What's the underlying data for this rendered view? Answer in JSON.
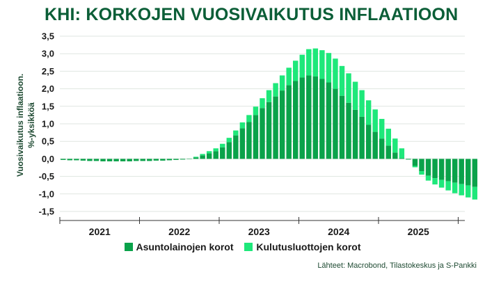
{
  "title": "KHI: KORKOJEN VUOSIVAIKUTUS INFLAATIOON",
  "source": "Lähteet: Macrobond, Tilastokeskus ja S-Pankki",
  "colors": {
    "mortgage": "#0aa24a",
    "consumer": "#1ee87a",
    "title": "#0b5e37"
  },
  "chart_data": {
    "type": "bar",
    "stacked": true,
    "title": "KHI: KORKOJEN VUOSIVAIKUTUS INFLAATIOON",
    "ylabel": [
      "Vuosivaikutus inflaatioon.",
      "%-yksikköä"
    ],
    "xlabel": "",
    "ylim": [
      -1.5,
      3.5
    ],
    "yticks": [
      -1.5,
      -1.0,
      -0.5,
      0.0,
      0.5,
      1.0,
      1.5,
      2.0,
      2.5,
      3.0,
      3.5
    ],
    "ytick_labels": [
      "-1,5",
      "-1,0",
      "-0,5",
      "0,0",
      "0,5",
      "1,0",
      "1,5",
      "2,0",
      "2,5",
      "3,0",
      "3,5"
    ],
    "year_labels": [
      "2021",
      "2022",
      "2023",
      "2024",
      "2025"
    ],
    "grid": true,
    "legend_position": "bottom",
    "x_start": "2021-01",
    "x_end": "2025-06",
    "series": [
      {
        "name": "Asuntolainojen korot",
        "values": [
          -0.03,
          -0.04,
          -0.04,
          -0.05,
          -0.06,
          -0.06,
          -0.07,
          -0.07,
          -0.07,
          -0.07,
          -0.07,
          -0.06,
          -0.06,
          -0.06,
          -0.05,
          -0.05,
          -0.04,
          -0.03,
          -0.02,
          0.0,
          0.04,
          0.1,
          0.16,
          0.22,
          0.33,
          0.48,
          0.67,
          0.87,
          1.05,
          1.25,
          1.45,
          1.62,
          1.78,
          1.95,
          2.1,
          2.22,
          2.32,
          2.38,
          2.35,
          2.28,
          2.18,
          2.0,
          1.8,
          1.6,
          1.4,
          1.2,
          0.97,
          0.77,
          0.58,
          0.38,
          0.18,
          0.02,
          -0.02,
          -0.2,
          -0.35,
          -0.48,
          -0.55,
          -0.6,
          -0.64,
          -0.68,
          -0.72,
          -0.76,
          -0.8
        ]
      },
      {
        "name": "Kulutusluottojen korot",
        "values": [
          0.0,
          0.0,
          0.0,
          0.0,
          0.0,
          0.0,
          0.0,
          0.0,
          0.0,
          0.0,
          0.0,
          0.0,
          0.0,
          0.0,
          0.0,
          0.0,
          0.0,
          0.0,
          0.0,
          0.0,
          0.02,
          0.04,
          0.06,
          0.08,
          0.1,
          0.12,
          0.14,
          0.17,
          0.2,
          0.24,
          0.28,
          0.34,
          0.38,
          0.43,
          0.5,
          0.58,
          0.65,
          0.75,
          0.8,
          0.82,
          0.84,
          0.86,
          0.85,
          0.84,
          0.8,
          0.76,
          0.7,
          0.64,
          0.56,
          0.48,
          0.4,
          0.28,
          0.0,
          -0.04,
          -0.1,
          -0.14,
          -0.18,
          -0.22,
          -0.26,
          -0.3,
          -0.32,
          -0.34,
          -0.36
        ]
      }
    ]
  }
}
